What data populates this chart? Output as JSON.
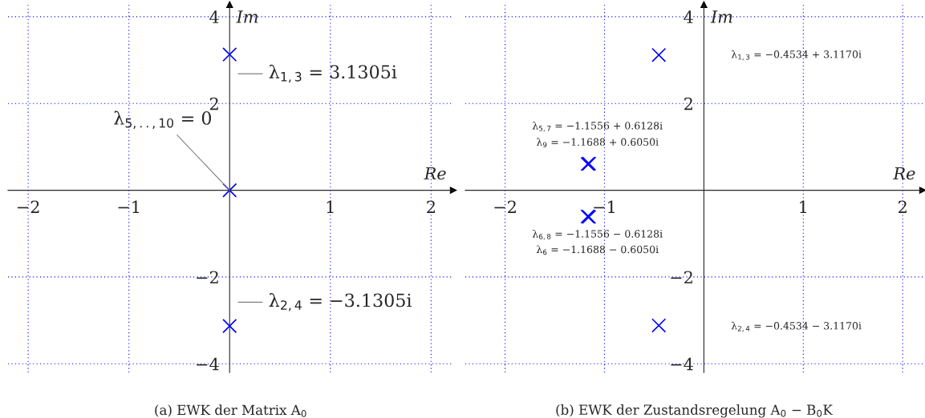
{
  "chart_data": [
    {
      "type": "scatter",
      "title": "(a) EWK der Matrix A$_{0}$",
      "xlabel": "Re",
      "ylabel": "Im",
      "xlim": [
        -2.2,
        2.22
      ],
      "ylim": [
        -4.2,
        4.28
      ],
      "xticks": [
        -2,
        -1,
        1,
        2
      ],
      "yticks": [
        -4,
        -2,
        2,
        4
      ],
      "grid": true,
      "marker": "cross",
      "series": [
        {
          "color": "#0000ff",
          "x": [
            0,
            0,
            0
          ],
          "values": [
            3.1305,
            0,
            -3.1305
          ]
        }
      ],
      "annotations": [
        "λ$_{1,3}$ = 3.1305i",
        {
          "text": "λ$_{5,..,10}$ = 0",
          "x": 0,
          "y": 0
        },
        "λ$_{2,4}$ = −3.1305i"
      ]
    },
    {
      "type": "scatter",
      "title": "(b) EWK der Zustandsregelung A$_{0}$ − B$_{0}$K",
      "xlabel": "Re",
      "ylabel": "Im",
      "xlim": [
        -2.4,
        2.2
      ],
      "ylim": [
        -4.2,
        4.28
      ],
      "xticks": [
        -2,
        -1,
        1,
        2
      ],
      "yticks": [
        -4,
        -2,
        2,
        4
      ],
      "grid": true,
      "marker": "cross",
      "series": [
        {
          "color": "#0000ff",
          "x": [
            -0.4534,
            -0.4534,
            -1.1556,
            -1.1556,
            -1.1688,
            -1.1688
          ],
          "values": [
            3.117,
            -3.117,
            0.6128,
            -0.6128,
            0.605,
            -0.605
          ]
        }
      ],
      "annotations": [
        "λ$_{1,3}$ = −0.4534 + 3.1170i",
        "λ$_{2,4}$ = −0.4534 − 3.1170i",
        "λ$_{5,7}$ = −1.1556 + 0.6128i",
        "λ$_{9}$ = −1.1688 + 0.6050i",
        "λ$_{6,8}$ = −1.1556 − 0.6128i",
        "λ$_{6}$ = −1.1688 − 0.6050i"
      ]
    }
  ]
}
